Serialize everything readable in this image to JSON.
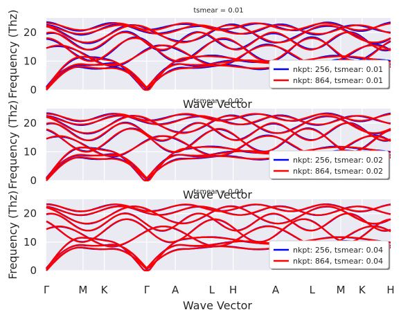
{
  "chart_data": [
    {
      "type": "line",
      "title": "tsmear = 0.01",
      "xlabel": "Wave Vector",
      "ylabel": "Frequency (Thz)",
      "ylim": [
        0,
        25
      ],
      "yticks": [
        0,
        10,
        20
      ],
      "tsmear": 0.01,
      "legend_position": "lower-right",
      "series": [
        {
          "name": "nkpt: 256, tsmear: 0.01",
          "color": "#0000ff"
        },
        {
          "name": "nkpt: 864, tsmear: 0.01",
          "color": "#ff0000"
        }
      ]
    },
    {
      "type": "line",
      "title": "tsmear = 0.02",
      "xlabel": "Wave Vector",
      "ylabel": "Frequency (Thz)",
      "ylim": [
        0,
        25
      ],
      "yticks": [
        0,
        10,
        20
      ],
      "tsmear": 0.02,
      "legend_position": "lower-right",
      "series": [
        {
          "name": "nkpt: 256, tsmear: 0.02",
          "color": "#0000ff"
        },
        {
          "name": "nkpt: 864, tsmear: 0.02",
          "color": "#ff0000"
        }
      ]
    },
    {
      "type": "line",
      "title": "tsmear = 0.04",
      "xlabel": "Wave Vector",
      "ylabel": "Frequency (Thz)",
      "ylim": [
        0,
        25
      ],
      "yticks": [
        0,
        10,
        20
      ],
      "tsmear": 0.04,
      "legend_position": "lower-right",
      "series": [
        {
          "name": "nkpt: 256, tsmear: 0.04",
          "color": "#0000ff"
        },
        {
          "name": "nkpt: 864, tsmear: 0.04",
          "color": "#ff0000"
        }
      ]
    }
  ],
  "x_axis": {
    "label": "Wave Vector",
    "range": [
      0,
      8.9
    ],
    "ticks": [
      {
        "label": "Γ",
        "x": 0
      },
      {
        "label": "M",
        "x": 1.0
      },
      {
        "label": "K",
        "x": 1.58
      },
      {
        "label": "Γ",
        "x": 2.74
      },
      {
        "label": "A",
        "x": 3.52
      },
      {
        "label": "L",
        "x": 4.52
      },
      {
        "label": "H",
        "x": 5.1
      },
      {
        "label": "A",
        "x": 6.26
      },
      {
        "label": "L",
        "x": 7.26
      },
      {
        "label": "M",
        "x": 8.04
      },
      {
        "label": "K",
        "x": 8.62
      },
      {
        "label": "H",
        "x": 9.4
      }
    ]
  },
  "style": {
    "axes_background": "#eaeaf2",
    "grid_color": "#ffffff",
    "text_color": "#262626"
  }
}
